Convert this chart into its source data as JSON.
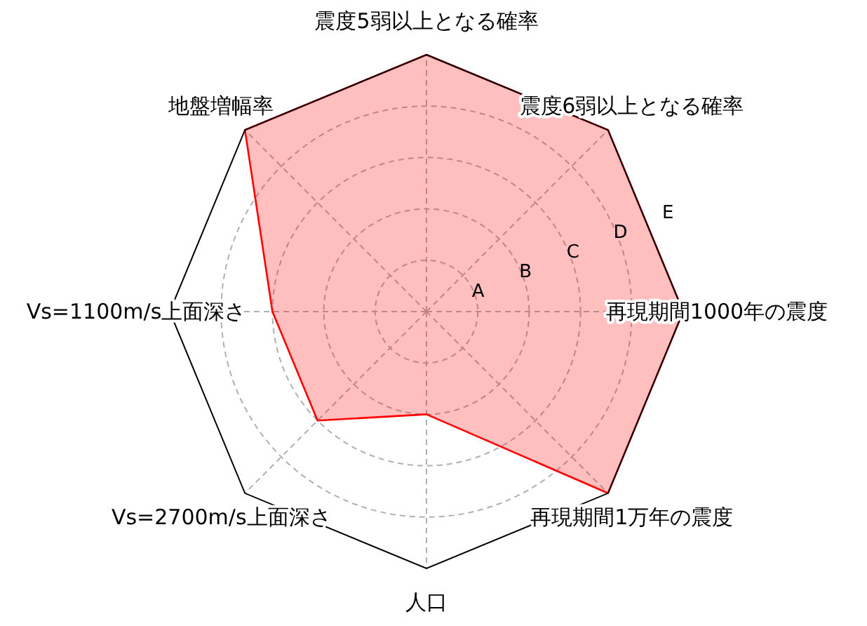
{
  "chart_data": {
    "type": "radar",
    "categories": [
      "震度5弱以上となる確率",
      "震度6弱以上となる確率",
      "再現期間1000年の震度",
      "再現期間1万年の震度",
      "人口",
      "Vs=2700m/s上面深さ",
      "Vs=1100m/s上面深さ",
      "地盤増幅率"
    ],
    "series": [
      {
        "color": "#ff0000",
        "values": [
          5,
          5,
          5,
          5,
          2,
          3,
          3,
          5
        ]
      }
    ],
    "ylim": [
      0,
      5
    ],
    "yticks": [
      {
        "value": 1,
        "label": "A"
      },
      {
        "value": 2,
        "label": "B"
      },
      {
        "value": 3,
        "label": "C"
      },
      {
        "value": 4,
        "label": "D"
      },
      {
        "value": 5,
        "label": "E"
      }
    ],
    "grid": true
  }
}
